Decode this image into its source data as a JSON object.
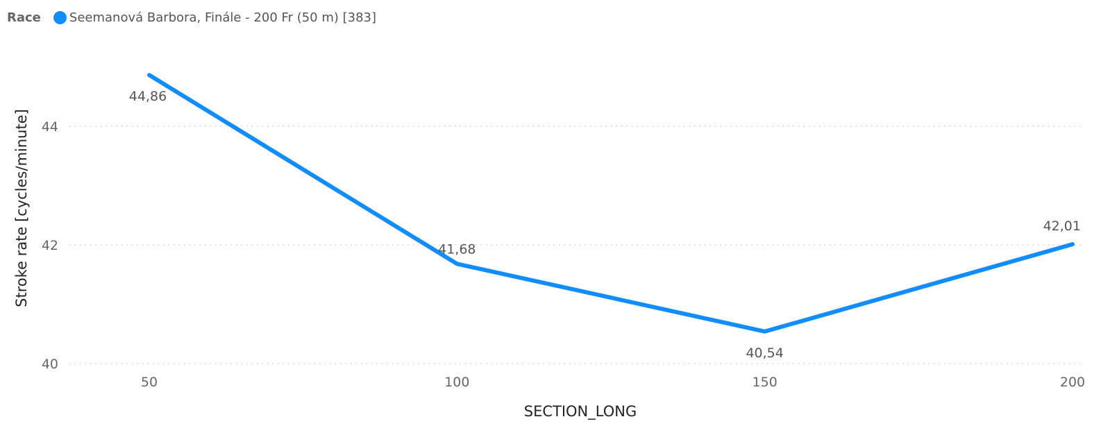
{
  "legend": {
    "title": "Race",
    "series_label": "Seemanová Barbora, Finále - 200 Fr (50 m) [383]"
  },
  "colors": {
    "series": "#118DFF",
    "grid": "#c8c8c8"
  },
  "chart_data": {
    "type": "line",
    "xlabel": "SECTION_LONG",
    "ylabel": "Stroke rate [cycles/minute]",
    "x": [
      50,
      100,
      150,
      200
    ],
    "x_tick_labels": [
      "50",
      "100",
      "150",
      "200"
    ],
    "series": [
      {
        "name": "Seemanová Barbora, Finále - 200 Fr (50 m) [383]",
        "values": [
          44.86,
          41.68,
          40.54,
          42.01
        ],
        "data_labels": [
          "44,86",
          "41,68",
          "40,54",
          "42,01"
        ]
      }
    ],
    "xlim": [
      50,
      200
    ],
    "ylim": [
      40,
      45.4
    ],
    "y_ticks": [
      40,
      42,
      44
    ],
    "y_tick_labels": [
      "40",
      "42",
      "44"
    ],
    "grid": "horizontal dotted",
    "legend_position": "top-left"
  }
}
